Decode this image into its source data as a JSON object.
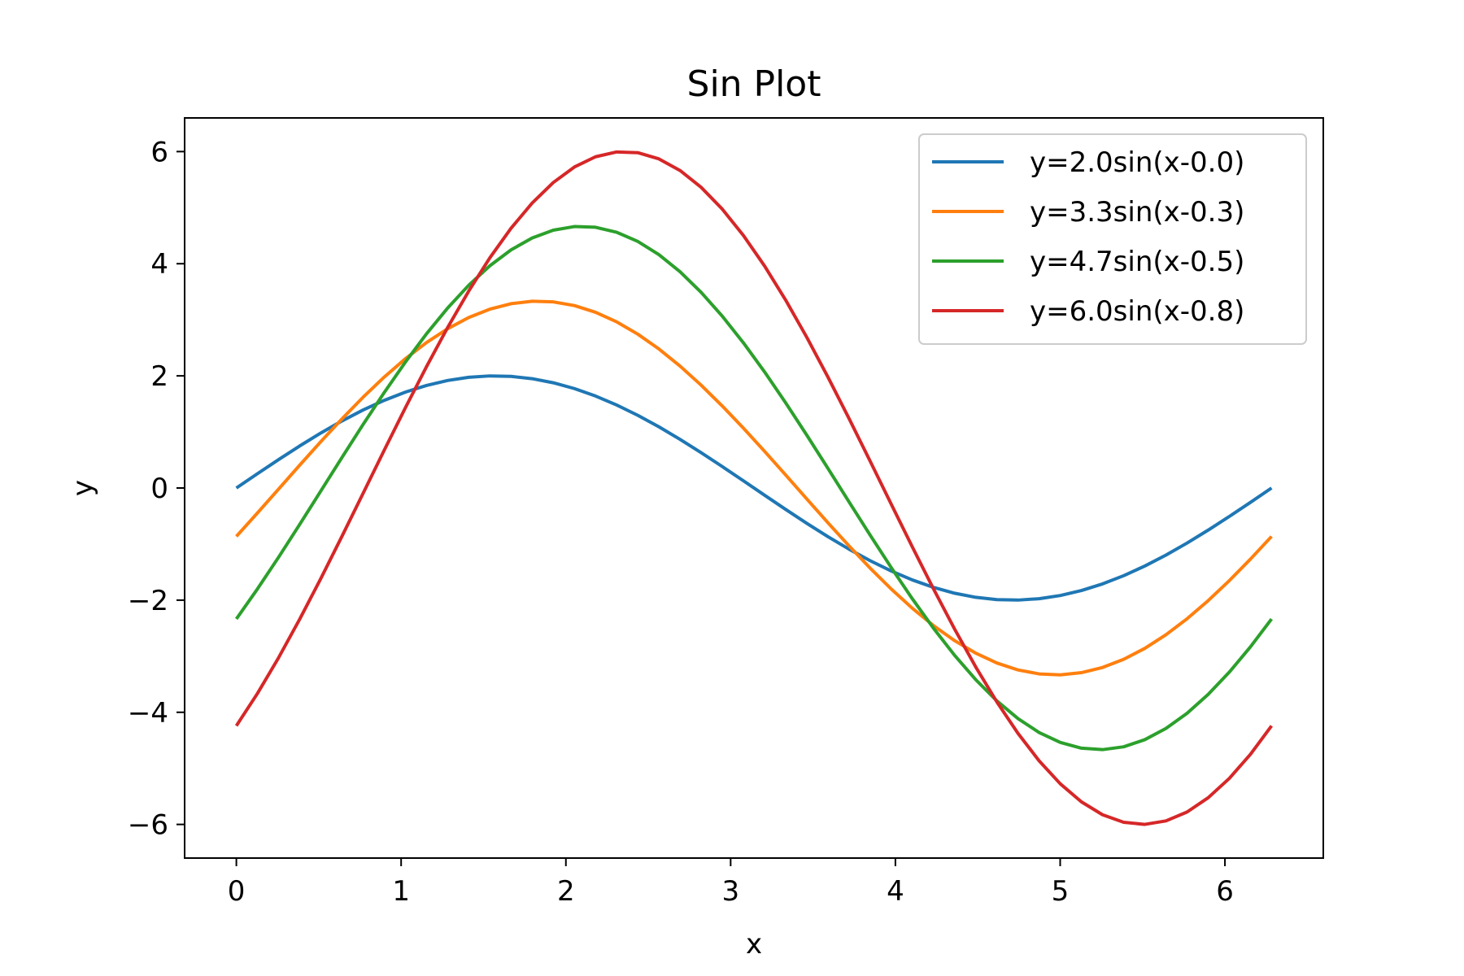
{
  "chart_data": {
    "type": "line",
    "title": "Sin Plot",
    "xlabel": "x",
    "ylabel": "y",
    "xlim": [
      -0.314,
      6.597
    ],
    "ylim": [
      -6.6,
      6.6
    ],
    "xticks": [
      0,
      1,
      2,
      3,
      4,
      5,
      6
    ],
    "xtick_labels": [
      "0",
      "1",
      "2",
      "3",
      "4",
      "5",
      "6"
    ],
    "yticks": [
      -6,
      -4,
      -2,
      0,
      2,
      4,
      6
    ],
    "ytick_labels": [
      "−6",
      "−4",
      "−2",
      "0",
      "2",
      "4",
      "6"
    ],
    "grid": false,
    "legend_position": "top-right",
    "x_start": 0,
    "x_end": 6.283,
    "points_per_series": 50,
    "series": [
      {
        "name": "y=2.0sin(x-0.0)",
        "amplitude": 2.0,
        "phase": 0.0,
        "color": "#1f77b4"
      },
      {
        "name": "y=3.3sin(x-0.3)",
        "amplitude": 3.333,
        "phase": 0.262,
        "color": "#ff7f0e"
      },
      {
        "name": "y=4.7sin(x-0.5)",
        "amplitude": 4.667,
        "phase": 0.524,
        "color": "#2ca02c"
      },
      {
        "name": "y=6.0sin(x-0.8)",
        "amplitude": 6.0,
        "phase": 0.785,
        "color": "#d62728"
      }
    ]
  }
}
